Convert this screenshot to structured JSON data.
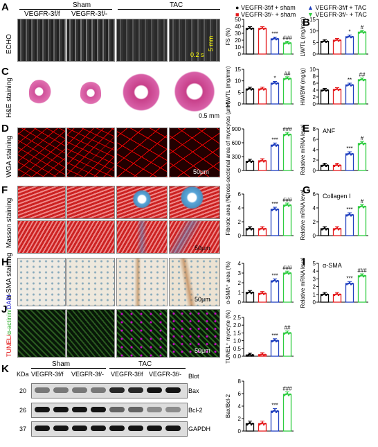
{
  "panel_letters": [
    "A",
    "B",
    "C",
    "D",
    "E",
    "F",
    "G",
    "H",
    "I",
    "J",
    "K"
  ],
  "groups": {
    "sham": "Sham",
    "tac": "TAC"
  },
  "genotypes": [
    "VEGFR-3f/f",
    "VEGFR-3f/-",
    "VEGFR-3f/f",
    "VEGFR-3f/-"
  ],
  "row_labels": {
    "echo": "ECHO",
    "he": "H&E staining",
    "wga": "WGA staining",
    "masson": "Masson staining",
    "asma": "α-SMA staining",
    "tunel_a": "TUNEL/",
    "tunel_b": "α-actinin/",
    "tunel_c": "DAPI"
  },
  "scale_bars": {
    "echo_time": "0.2 s",
    "echo_dist": "5 mm",
    "he": "0.5 mm",
    "wga": "50μm",
    "masson": "50μm",
    "asma": "50μm",
    "tunel": "50μm"
  },
  "legend": {
    "items": [
      {
        "label": "VEGFR-3f/f + sham",
        "color": "#000000",
        "shape": "circle"
      },
      {
        "label": "VEGFR-3f/- + sham",
        "color": "#e41a1c",
        "shape": "square"
      },
      {
        "label": "VEGFR-3f/f + TAC",
        "color": "#1f3fbf",
        "shape": "triangle"
      },
      {
        "label": "VEGFR-3f/- + TAC",
        "color": "#2ecc40",
        "shape": "triangle-down"
      }
    ]
  },
  "chart_data": [
    {
      "id": "fs",
      "type": "bar",
      "ylabel": "FS (%)",
      "ylim": [
        0,
        50
      ],
      "yticks": [
        0,
        10,
        20,
        30,
        40,
        50
      ],
      "values": [
        37,
        37,
        22,
        16
      ],
      "sig": [
        "",
        "",
        "***",
        "###"
      ]
    },
    {
      "id": "lwtl",
      "type": "bar",
      "title": "",
      "ylabel": "LW/TL (mg/mm)",
      "ylim": [
        0,
        15
      ],
      "yticks": [
        0,
        5,
        10,
        15
      ],
      "values": [
        5.5,
        6.0,
        7.5,
        9.5
      ],
      "sig": [
        "",
        "",
        "*",
        "#"
      ]
    },
    {
      "id": "hwtl",
      "type": "bar",
      "ylabel": "HW/TL (mg/mm)",
      "ylim": [
        0,
        15
      ],
      "yticks": [
        0,
        5,
        10,
        15
      ],
      "values": [
        6.5,
        6.5,
        9.0,
        11.0
      ],
      "sig": [
        "",
        "",
        "*",
        "##"
      ]
    },
    {
      "id": "hwbw",
      "type": "bar",
      "ylabel": "HW/BW (mg/g)",
      "ylim": [
        0,
        10
      ],
      "yticks": [
        0,
        2,
        4,
        6,
        8,
        10
      ],
      "values": [
        4.0,
        4.2,
        5.5,
        7.0
      ],
      "sig": [
        "",
        "",
        "**",
        "##"
      ]
    },
    {
      "id": "csa",
      "type": "bar",
      "ylabel": "Cross-sectional area of myocytes (μm²)",
      "ylim": [
        0,
        900
      ],
      "yticks": [
        0,
        300,
        600,
        900
      ],
      "values": [
        200,
        210,
        550,
        780
      ],
      "sig": [
        "",
        "",
        "***",
        "###"
      ]
    },
    {
      "id": "anf",
      "type": "bar",
      "title": "ANF",
      "ylabel": "Relative mRNA level",
      "ylim": [
        0,
        8
      ],
      "yticks": [
        0,
        2,
        4,
        6,
        8
      ],
      "values": [
        1.0,
        1.0,
        3.2,
        5.2
      ],
      "sig": [
        "",
        "",
        "***",
        "#"
      ]
    },
    {
      "id": "fibrotic",
      "type": "bar",
      "ylabel": "Fibrotic area (%)",
      "ylim": [
        0,
        6
      ],
      "yticks": [
        0,
        2,
        4,
        6
      ],
      "values": [
        1.0,
        1.0,
        3.8,
        4.4
      ],
      "sig": [
        "",
        "",
        "***",
        "###"
      ]
    },
    {
      "id": "col1",
      "type": "bar",
      "title": "Collagen I",
      "ylabel": "Relative mRNA level",
      "ylim": [
        0,
        6
      ],
      "yticks": [
        0,
        2,
        4,
        6
      ],
      "values": [
        1.0,
        1.0,
        3.0,
        4.2
      ],
      "sig": [
        "",
        "",
        "***",
        "#"
      ]
    },
    {
      "id": "sma_area",
      "type": "bar",
      "ylabel": "α-SMA⁺ area (%)",
      "ylim": [
        0,
        4
      ],
      "yticks": [
        0,
        1,
        2,
        3,
        4
      ],
      "values": [
        1.0,
        0.9,
        2.2,
        3.0
      ],
      "sig": [
        "",
        "",
        "***",
        "###"
      ]
    },
    {
      "id": "sma_mrna",
      "type": "bar",
      "title": "α-SMA",
      "ylabel": "Relative mRNA level",
      "ylim": [
        0,
        5
      ],
      "yticks": [
        0,
        1,
        2,
        3,
        4,
        5
      ],
      "values": [
        1.0,
        1.0,
        2.4,
        3.4
      ],
      "sig": [
        "",
        "",
        "***",
        "###"
      ]
    },
    {
      "id": "tunel",
      "type": "bar",
      "ylabel": "TUNEL⁺ myocyte (%)",
      "ylim": [
        0,
        2.5
      ],
      "yticks": [
        0.0,
        0.5,
        1.0,
        1.5,
        2.0,
        2.5
      ],
      "values": [
        0.08,
        0.1,
        1.0,
        1.5
      ],
      "sig": [
        "",
        "",
        "***",
        "##"
      ]
    },
    {
      "id": "baxbcl",
      "type": "bar",
      "ylabel": "Bax/Bcl-2",
      "ylim": [
        0,
        8
      ],
      "yticks": [
        0,
        2,
        4,
        6,
        8
      ],
      "values": [
        1.2,
        1.2,
        3.2,
        5.9
      ],
      "sig": [
        "",
        "",
        "***",
        "###"
      ]
    }
  ],
  "western": {
    "kda_header": "KDa",
    "blot_header": "Blot",
    "rows": [
      {
        "kda": "20",
        "name": "Bax"
      },
      {
        "kda": "26",
        "name": "Bcl-2"
      },
      {
        "kda": "37",
        "name": "GAPDH"
      }
    ]
  }
}
